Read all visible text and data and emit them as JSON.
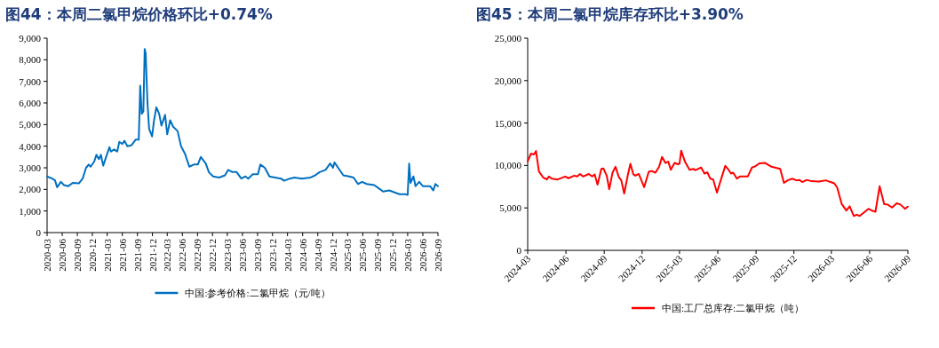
{
  "chart_data": [
    {
      "type": "line",
      "title": "图44：本周二氯甲烷价格环比+0.74%",
      "legend": "bottom",
      "grid": false,
      "xlim": [
        "2020-03",
        "2026-09"
      ],
      "xticks": [
        "2020-03",
        "2020-06",
        "2020-09",
        "2020-12",
        "2021-03",
        "2021-06",
        "2021-09",
        "2021-12",
        "2022-03",
        "2022-06",
        "2022-09",
        "2022-12",
        "2023-03",
        "2023-06",
        "2023-09",
        "2023-12",
        "2024-03",
        "2024-06",
        "2024-09",
        "2024-12",
        "2025-03",
        "2025-06",
        "2025-09",
        "2025-12",
        "2026-03",
        "2026-06",
        "2026-09"
      ],
      "ylim": [
        0,
        9000
      ],
      "yticks": [
        0,
        {
          "value": 1000,
          "label": "1,000"
        },
        {
          "value": 2000,
          "label": "2,000"
        },
        {
          "value": 3000,
          "label": "3,000"
        },
        {
          "value": 4000,
          "label": "4,000"
        },
        {
          "value": 5000,
          "label": "5,000"
        },
        {
          "value": 6000,
          "label": "6,000"
        },
        {
          "value": 7000,
          "label": "7,000"
        },
        {
          "value": 8000,
          "label": "8,000"
        },
        {
          "value": 9000,
          "label": "9,000"
        }
      ],
      "series": [
        {
          "name": "中国:参考价格:二氯甲烷（元/吨）",
          "color": "#0070c0",
          "x": [
            "2020-03-01",
            "2020-04-01",
            "2020-04-18",
            "2020-05-01",
            "2020-05-24",
            "2020-06-12",
            "2020-07-08",
            "2020-08-04",
            "2020-09-10",
            "2020-10-03",
            "2020-10-24",
            "2020-11-09",
            "2020-11-21",
            "2020-12-13",
            "2020-12-26",
            "2021-01-10",
            "2021-01-22",
            "2021-02-05",
            "2021-02-27",
            "2021-03-15",
            "2021-03-24",
            "2021-04-12",
            "2021-05-01",
            "2021-05-14",
            "2021-06-01",
            "2021-06-14",
            "2021-07-02",
            "2021-07-28",
            "2021-08-21",
            "2021-09-09",
            "2021-09-18",
            "2021-09-27",
            "2021-10-07",
            "2021-10-15",
            "2021-10-21",
            "2021-11-01",
            "2021-11-11",
            "2021-11-29",
            "2021-12-11",
            "2021-12-25",
            "2022-01-11",
            "2022-01-25",
            "2022-02-16",
            "2022-03-01",
            "2022-03-19",
            "2022-04-06",
            "2022-05-03",
            "2022-05-24",
            "2022-06-17",
            "2022-07-13",
            "2022-08-10",
            "2022-09-03",
            "2022-09-21",
            "2022-10-21",
            "2022-11-09",
            "2022-12-05",
            "2023-01-10",
            "2023-02-15",
            "2023-03-06",
            "2023-04-01",
            "2023-04-27",
            "2023-05-25",
            "2023-06-19",
            "2023-07-06",
            "2023-08-03",
            "2023-09-03",
            "2023-09-18",
            "2023-10-15",
            "2023-11-12",
            "2023-12-16",
            "2024-01-22",
            "2024-02-09",
            "2024-03-15",
            "2024-04-12",
            "2024-05-26",
            "2024-07-19",
            "2024-08-16",
            "2024-09-12",
            "2024-10-18",
            "2024-11-15",
            "2024-12-02",
            "2024-12-11",
            "2025-01-07",
            "2025-02-03",
            "2025-03-10",
            "2025-04-06",
            "2025-05-03",
            "2025-05-28",
            "2025-06-25",
            "2025-08-10",
            "2025-09-06",
            "2025-10-03",
            "2025-11-09",
            "2025-12-15",
            "2026-01-10",
            "2026-02-15",
            "2026-03-01",
            "2026-03-10",
            "2026-03-18",
            "2026-04-05",
            "2026-04-18",
            "2026-05-10",
            "2026-06-01",
            "2026-07-15",
            "2026-08-04",
            "2026-08-16",
            "2026-09-01"
          ],
          "values": [
            2600,
            2500,
            2420,
            2100,
            2350,
            2200,
            2150,
            2300,
            2280,
            2500,
            3000,
            3150,
            3050,
            3300,
            3600,
            3400,
            3600,
            3100,
            3600,
            3950,
            3750,
            3850,
            3750,
            4200,
            4100,
            4250,
            4000,
            4050,
            4300,
            4300,
            6800,
            5500,
            5600,
            8500,
            8300,
            6000,
            4800,
            4450,
            5200,
            5800,
            5500,
            4950,
            5450,
            4550,
            5200,
            4900,
            4700,
            4000,
            3650,
            3050,
            3150,
            3150,
            3500,
            3200,
            2800,
            2600,
            2550,
            2650,
            2900,
            2800,
            2800,
            2500,
            2600,
            2500,
            2700,
            2700,
            3150,
            3000,
            2600,
            2550,
            2500,
            2400,
            2500,
            2550,
            2500,
            2550,
            2650,
            2800,
            2900,
            3200,
            3000,
            3250,
            2950,
            2650,
            2600,
            2550,
            2250,
            2350,
            2250,
            2200,
            2050,
            1900,
            1950,
            1850,
            1780,
            1780,
            1750,
            3200,
            2300,
            2600,
            2150,
            2350,
            2150,
            2150,
            1950,
            2250,
            2150
          ]
        }
      ]
    },
    {
      "type": "line",
      "title": "图45：本周二氯甲烷库存环比+3.90%",
      "legend": "bottom",
      "grid": false,
      "xlim": [
        "2024-03",
        "2026-09"
      ],
      "xticks": [
        "2024-03",
        "2024-06",
        "2024-09",
        "2024-12",
        "2025-03",
        "2025-06",
        "2025-09",
        "2025-12",
        "2026-03",
        "2026-06",
        "2026-09"
      ],
      "ylim": [
        0,
        25000
      ],
      "yticks": [
        0,
        {
          "value": 5000,
          "label": "5,000"
        },
        {
          "value": 10000,
          "label": "10,000"
        },
        {
          "value": 15000,
          "label": "15,000"
        },
        {
          "value": 20000,
          "label": "20,000"
        },
        {
          "value": 25000,
          "label": "25,000"
        }
      ],
      "series": [
        {
          "name": "中国:工厂总库存:二氯甲烷（吨）",
          "color": "#ff0000",
          "x": [
            "2024-03-01",
            "2024-03-09",
            "2024-03-16",
            "2024-03-21",
            "2024-03-28",
            "2024-04-07",
            "2024-04-16",
            "2024-04-21",
            "2024-04-28",
            "2024-05-12",
            "2024-05-30",
            "2024-06-07",
            "2024-06-21",
            "2024-06-28",
            "2024-07-05",
            "2024-07-12",
            "2024-07-26",
            "2024-08-03",
            "2024-08-09",
            "2024-08-16",
            "2024-08-25",
            "2024-08-30",
            "2024-09-07",
            "2024-09-13",
            "2024-09-21",
            "2024-09-28",
            "2024-10-06",
            "2024-10-12",
            "2024-10-19",
            "2024-10-28",
            "2024-11-03",
            "2024-11-10",
            "2024-11-15",
            "2024-11-23",
            "2024-12-06",
            "2024-12-17",
            "2024-12-24",
            "2025-01-02",
            "2025-01-11",
            "2025-01-18",
            "2025-01-26",
            "2025-02-02",
            "2025-02-08",
            "2025-02-17",
            "2025-02-25",
            "2025-03-01",
            "2025-03-05",
            "2025-03-14",
            "2025-03-25",
            "2025-04-03",
            "2025-04-08",
            "2025-04-22",
            "2025-04-30",
            "2025-05-07",
            "2025-05-14",
            "2025-05-21",
            "2025-05-30",
            "2025-06-08",
            "2025-06-19",
            "2025-06-26",
            "2025-07-03",
            "2025-07-08",
            "2025-07-17",
            "2025-07-24",
            "2025-08-12",
            "2025-08-22",
            "2025-08-30",
            "2025-09-09",
            "2025-09-23",
            "2025-10-08",
            "2025-10-29",
            "2025-11-07",
            "2025-11-16",
            "2025-11-27",
            "2025-12-07",
            "2025-12-14",
            "2025-12-21",
            "2026-01-01",
            "2026-01-12",
            "2026-01-30",
            "2026-02-16",
            "2026-02-24",
            "2026-03-08",
            "2026-03-15",
            "2026-03-26",
            "2026-04-06",
            "2026-04-14",
            "2026-04-24",
            "2026-05-01",
            "2026-05-08",
            "2026-05-18",
            "2026-05-29",
            "2026-06-08",
            "2026-06-15",
            "2026-06-25",
            "2026-07-06",
            "2026-07-14",
            "2026-07-25",
            "2026-08-05",
            "2026-08-14",
            "2026-08-25",
            "2026-09-01"
          ],
          "values": [
            10500,
            11400,
            11300,
            11700,
            9300,
            8600,
            8350,
            8700,
            8450,
            8350,
            8700,
            8500,
            8800,
            8700,
            9000,
            8700,
            9000,
            8700,
            8950,
            7750,
            9600,
            9650,
            8800,
            7200,
            9150,
            9850,
            8650,
            8250,
            6700,
            8950,
            10200,
            8950,
            8800,
            9000,
            7450,
            9250,
            9350,
            9150,
            9850,
            11000,
            10300,
            10450,
            9500,
            10300,
            10150,
            10200,
            11750,
            10450,
            9500,
            9600,
            9450,
            9750,
            9050,
            9200,
            8450,
            8350,
            6800,
            8250,
            9950,
            9550,
            9050,
            9150,
            8450,
            8700,
            8700,
            9750,
            9900,
            10250,
            10300,
            9850,
            9600,
            7950,
            8250,
            8450,
            8250,
            8300,
            8050,
            8300,
            8150,
            8100,
            8250,
            8100,
            7900,
            7400,
            5450,
            4700,
            5200,
            4050,
            4200,
            4050,
            4450,
            4900,
            4650,
            4550,
            7550,
            5450,
            5400,
            5050,
            5550,
            5400,
            4900,
            5150
          ]
        }
      ]
    }
  ]
}
